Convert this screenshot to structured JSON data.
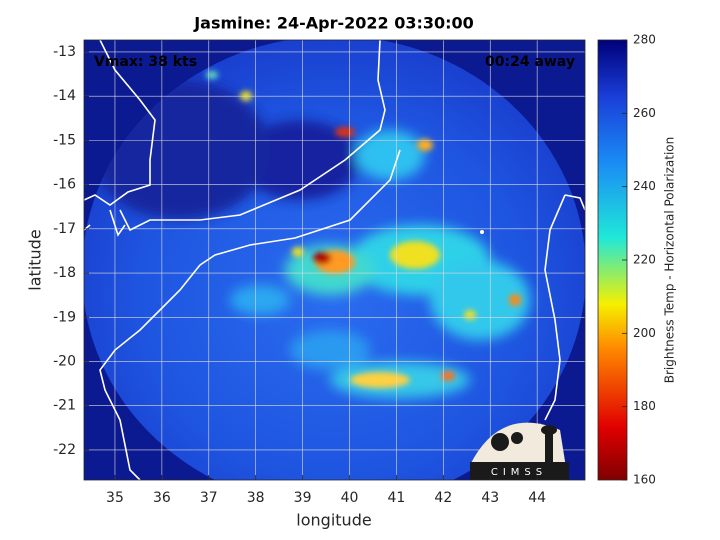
{
  "title": "Jasmine: 24-Apr-2022 03:30:00",
  "annotations": [
    "Vmax: 38 kts",
    "00:24 away"
  ],
  "x_axis": {
    "label": "longitude",
    "lim": [
      34.34,
      45.02
    ],
    "ticks": [
      35,
      36,
      37,
      38,
      39,
      40,
      41,
      42,
      43,
      44
    ]
  },
  "y_axis": {
    "label": "latitude",
    "lim": [
      -22.68,
      -12.73
    ],
    "ticks": [
      -13,
      -14,
      -15,
      -16,
      -17,
      -18,
      -19,
      -20,
      -21,
      -22
    ]
  },
  "colorbar": {
    "label": "Brightness Temp - Horizontal Polarization",
    "lim": [
      160,
      280
    ],
    "ticks": [
      160,
      180,
      200,
      220,
      240,
      260,
      280
    ]
  }
}
